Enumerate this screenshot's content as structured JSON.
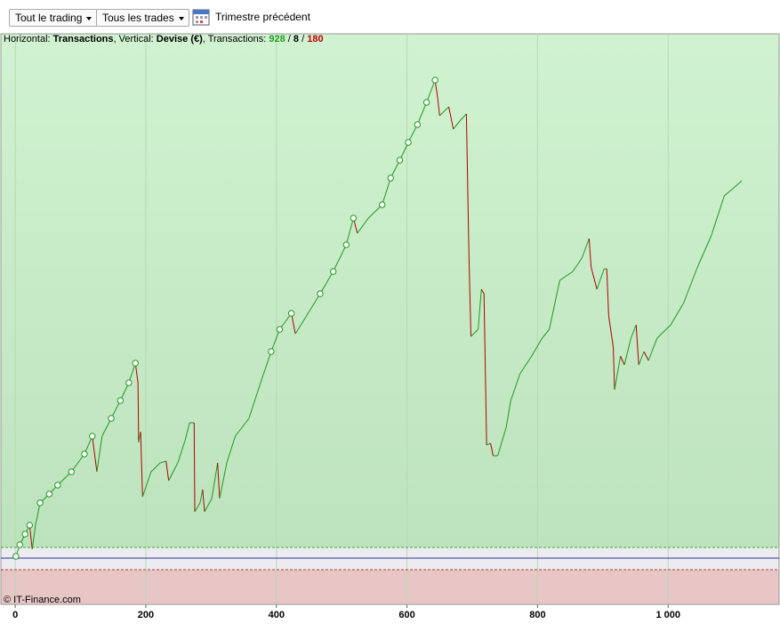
{
  "toolbar": {
    "filters": [
      "Tout le trading",
      "Tous les trades"
    ],
    "period": "Trimestre précédent"
  },
  "chart_data": {
    "type": "line",
    "subtitle_parts": [
      {
        "text": "Horizontal: "
      },
      {
        "text": "Transactions",
        "bold": true
      },
      {
        "text": ", Vertical: "
      },
      {
        "text": "Devise (€)",
        "bold": true
      },
      {
        "text": ", Transactions: "
      },
      {
        "value": 928,
        "bold": true,
        "color": "#22a022"
      },
      {
        "text": " / "
      },
      {
        "value": 8,
        "bold": true
      },
      {
        "text": " / "
      },
      {
        "value": 180,
        "bold": true,
        "color": "#c00000"
      }
    ],
    "credit": "© IT-Finance.com",
    "xlim": [
      -22,
      1170
    ],
    "ylim": [
      -52,
      589
    ],
    "xticks": [
      0,
      200,
      400,
      600,
      800,
      {
        "value": 1000,
        "label": "1 000"
      }
    ],
    "grid": true,
    "reference_lines": {
      "zero": 0,
      "upper": 12,
      "lower": -13
    },
    "series": [
      {
        "color": "#1f9a1f",
        "down_color": "#b00000",
        "x": [
          1,
          7,
          15,
          22,
          26,
          31,
          38,
          52,
          65,
          86,
          106,
          118,
          125,
          133,
          147,
          161,
          174,
          184,
          188,
          189,
          192,
          195,
          208,
          222,
          231,
          235,
          249,
          260,
          267,
          274,
          275,
          283,
          287,
          290,
          301,
          310,
          313,
          324,
          337,
          358,
          378,
          392,
          405,
          423,
          429,
          446,
          467,
          487,
          507,
          518,
          524,
          541,
          562,
          575,
          589,
          602,
          616,
          630,
          643,
          647,
          650,
          664,
          671,
          682,
          691,
          695,
          698,
          709,
          714,
          718,
          722,
          728,
          732,
          739,
          752,
          759,
          773,
          791,
          807,
          818,
          834,
          854,
          868,
          879,
          882,
          891,
          902,
          906,
          909,
          916,
          918,
          927,
          933,
          943,
          951,
          955,
          963,
          970,
          983,
          1004,
          1024,
          1045,
          1066,
          1086,
          1099,
          1113
        ],
        "values": [
          2,
          15,
          27,
          37,
          10,
          37,
          62,
          72,
          82,
          97,
          117,
          137,
          97,
          137,
          157,
          177,
          197,
          219,
          197,
          130,
          142,
          69,
          97,
          107,
          109,
          87,
          107,
          132,
          152,
          152,
          52,
          62,
          77,
          52,
          67,
          107,
          67,
          107,
          137,
          157,
          202,
          232,
          257,
          275,
          252,
          272,
          297,
          322,
          352,
          382,
          365,
          382,
          397,
          427,
          447,
          467,
          487,
          512,
          537,
          517,
          497,
          507,
          482,
          492,
          499,
          337,
          249,
          257,
          302,
          297,
          127,
          129,
          115,
          115,
          147,
          177,
          207,
          227,
          247,
          257,
          312,
          322,
          337,
          359,
          327,
          302,
          325,
          325,
          272,
          237,
          189,
          227,
          217,
          247,
          262,
          217,
          232,
          222,
          247,
          262,
          287,
          327,
          362,
          407,
          415,
          424
        ]
      }
    ]
  }
}
